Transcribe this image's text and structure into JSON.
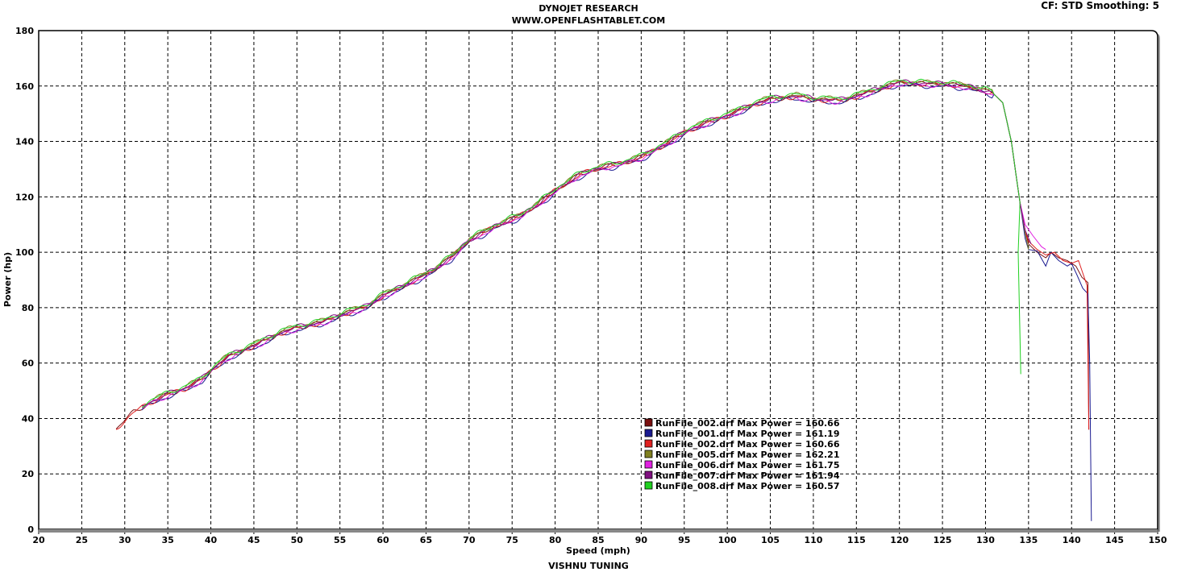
{
  "header": {
    "title": "DYNOJET RESEARCH",
    "subtitle": "WWW.OPENFLASHTABLET.COM",
    "cf": "CF: STD  Smoothing: 5"
  },
  "footer": "VISHNU TUNING",
  "chart_data": {
    "type": "line",
    "xlabel": "Speed (mph)",
    "ylabel": "Power (hp)",
    "xlim": [
      20,
      150
    ],
    "ylim": [
      0,
      180
    ],
    "xticks": [
      20,
      25,
      30,
      35,
      40,
      45,
      50,
      55,
      60,
      65,
      70,
      75,
      80,
      85,
      90,
      95,
      100,
      105,
      110,
      115,
      120,
      125,
      130,
      135,
      140,
      145,
      150
    ],
    "yticks": [
      0,
      20,
      40,
      60,
      80,
      100,
      120,
      140,
      160,
      180
    ],
    "grid": true,
    "legend_position": "bottom-center",
    "base_curve": [
      [
        29,
        36
      ],
      [
        31,
        42
      ],
      [
        33,
        45.5
      ],
      [
        35,
        48.5
      ],
      [
        37,
        50.5
      ],
      [
        39,
        54
      ],
      [
        40,
        57
      ],
      [
        42,
        62
      ],
      [
        45,
        66
      ],
      [
        48,
        70.5
      ],
      [
        50,
        72.5
      ],
      [
        53,
        74.5
      ],
      [
        55,
        77
      ],
      [
        58,
        80
      ],
      [
        60,
        84
      ],
      [
        63,
        88.5
      ],
      [
        66,
        93.5
      ],
      [
        68,
        98
      ],
      [
        70,
        104
      ],
      [
        73,
        109
      ],
      [
        76,
        113
      ],
      [
        78,
        117
      ],
      [
        80,
        122
      ],
      [
        83,
        128
      ],
      [
        85,
        130
      ],
      [
        88,
        132
      ],
      [
        90,
        134
      ],
      [
        93,
        139
      ],
      [
        95,
        143
      ],
      [
        98,
        147
      ],
      [
        100,
        149
      ],
      [
        103,
        153
      ],
      [
        105,
        155
      ],
      [
        108,
        156
      ],
      [
        110,
        155
      ],
      [
        113,
        154.5
      ],
      [
        115,
        156
      ],
      [
        118,
        159
      ],
      [
        120,
        161
      ],
      [
        123,
        160.5
      ],
      [
        125,
        160.5
      ],
      [
        128,
        159.5
      ],
      [
        131,
        157
      ],
      [
        132,
        154
      ],
      [
        133,
        140
      ],
      [
        134,
        118
      ]
    ],
    "series": [
      {
        "name": "RunFile_002.drf Max Power = 160.66",
        "color": "#7a1010",
        "start": 29,
        "offset": 0.3,
        "tail": [
          [
            134.6,
            108
          ],
          [
            135,
            103
          ],
          [
            136,
            100
          ],
          [
            137,
            98
          ],
          [
            137.6,
            100
          ],
          [
            138.5,
            98
          ],
          [
            139.5,
            97
          ],
          [
            140.5,
            95
          ],
          [
            141.2,
            91
          ],
          [
            141.9,
            89
          ],
          [
            142,
            36
          ]
        ]
      },
      {
        "name": "RunFile_001.drf Max Power = 161.19",
        "color": "#1a1a90",
        "start": 32,
        "offset": -0.6,
        "tail": [
          [
            134.6,
            105
          ],
          [
            135,
            101
          ],
          [
            136,
            100.5
          ],
          [
            137,
            95
          ],
          [
            137.6,
            100
          ],
          [
            138.5,
            97
          ],
          [
            139.5,
            95
          ],
          [
            140,
            96
          ],
          [
            140.6,
            92
          ],
          [
            141.3,
            87
          ],
          [
            141.9,
            85
          ],
          [
            142.1,
            60
          ],
          [
            142.3,
            3
          ]
        ]
      },
      {
        "name": "RunFile_002.drf Max Power = 160.66",
        "color": "#e02020",
        "start": 29,
        "offset": 0.2,
        "tail": [
          [
            134.6,
            108
          ],
          [
            135,
            104
          ],
          [
            136,
            101
          ],
          [
            137,
            99
          ],
          [
            138,
            100
          ],
          [
            139,
            97
          ],
          [
            140,
            96
          ],
          [
            140.8,
            97
          ],
          [
            141.8,
            88
          ],
          [
            142,
            36
          ]
        ]
      },
      {
        "name": "RunFile_005.drf Max Power = 162.21",
        "color": "#808020",
        "start": 32,
        "offset": 0.8,
        "tail": [
          [
            134.6,
            107
          ],
          [
            135,
            101
          ]
        ]
      },
      {
        "name": "RunFile_006.drf Max Power = 161.75",
        "color": "#e020e0",
        "start": 32,
        "offset": -0.2,
        "tail": [
          [
            134.6,
            110
          ],
          [
            135.5,
            106
          ],
          [
            136.5,
            102
          ],
          [
            137,
            101
          ]
        ]
      },
      {
        "name": "RunFile_007.drf Max Power = 161.94",
        "color": "#801080",
        "start": 32,
        "offset": 0.5,
        "tail": [
          [
            134.6,
            108
          ],
          [
            135.3,
            103
          ]
        ]
      },
      {
        "name": "RunFile_008.drf Max Power = 160.57",
        "color": "#20d020",
        "start": 32,
        "offset": 1.0,
        "tail": [
          [
            133.8,
            100
          ],
          [
            134,
            70
          ],
          [
            134.1,
            56
          ]
        ]
      }
    ]
  }
}
